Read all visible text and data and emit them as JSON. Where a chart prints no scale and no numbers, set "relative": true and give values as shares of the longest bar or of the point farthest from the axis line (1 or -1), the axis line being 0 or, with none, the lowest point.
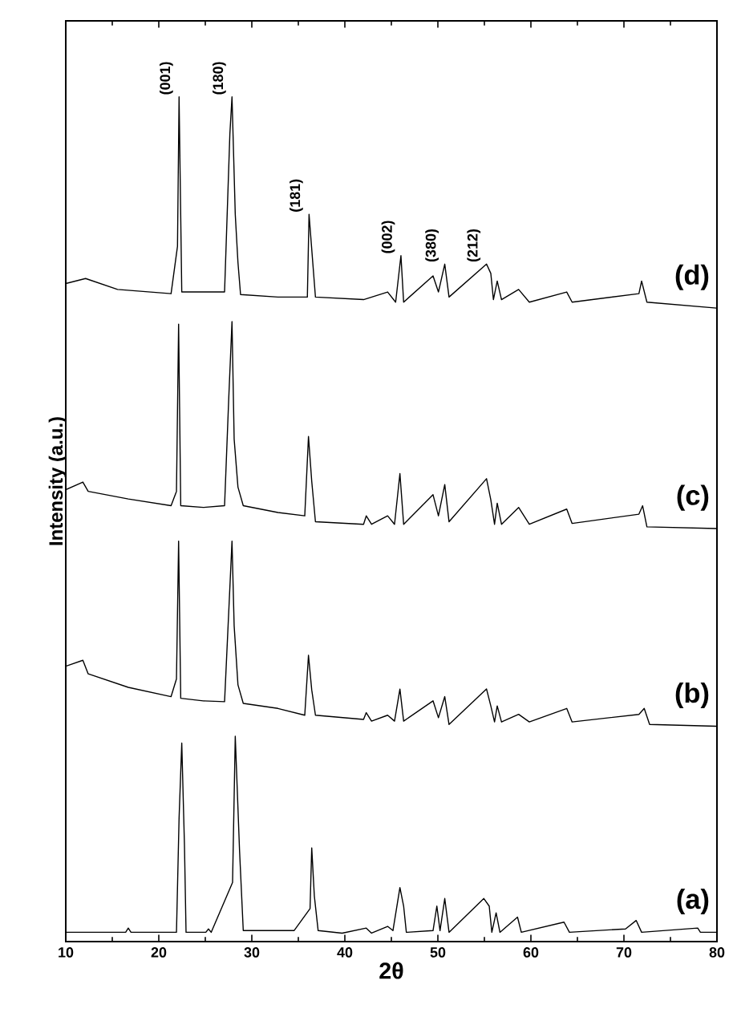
{
  "chart_data": {
    "type": "line",
    "relative": true,
    "xlabel": "2θ",
    "ylabel": "Intensity (a.u.)",
    "xlim": [
      10,
      80
    ],
    "xticks": [
      10,
      20,
      30,
      40,
      50,
      60,
      70,
      80
    ],
    "series": [
      {
        "name": "(a)",
        "color": "#000000",
        "x": [
          10,
          16.44,
          16.72,
          17.01,
          21.9,
          22.18,
          22.47,
          22.76,
          22.93,
          25.06,
          25.34,
          25.63,
          27.93,
          28.22,
          28.68,
          29.08,
          32.53,
          34.54,
          36.26,
          36.44,
          36.72,
          37.13,
          39.71,
          42.3,
          42.87,
          44.6,
          45.17,
          45.92,
          46.32,
          46.61,
          49.48,
          49.89,
          50.23,
          50.74,
          51.2,
          54.94,
          55.52,
          55.8,
          56.26,
          56.67,
          58.56,
          58.97,
          63.56,
          64.14,
          70.17,
          71.32,
          71.9,
          77.93,
          78.22,
          79.94
        ],
        "values": [
          0.011,
          0.011,
          0.016,
          0.011,
          0.011,
          0.146,
          0.235,
          0.114,
          0.011,
          0.011,
          0.015,
          0.011,
          0.07,
          0.243,
          0.108,
          0.013,
          0.013,
          0.013,
          0.039,
          0.111,
          0.054,
          0.013,
          0.01,
          0.016,
          0.01,
          0.018,
          0.013,
          0.064,
          0.042,
          0.011,
          0.013,
          0.042,
          0.013,
          0.051,
          0.011,
          0.051,
          0.042,
          0.011,
          0.034,
          0.011,
          0.029,
          0.011,
          0.023,
          0.011,
          0.015,
          0.025,
          0.011,
          0.016,
          0.011,
          0.011
        ]
      },
      {
        "name": "(b)",
        "color": "#000000",
        "x": [
          10,
          11.84,
          12.41,
          16.72,
          21.32,
          21.9,
          22.13,
          22.36,
          24.77,
          27.07,
          27.53,
          27.87,
          28.1,
          28.51,
          29.08,
          32.81,
          35.69,
          36.09,
          36.44,
          36.84,
          42.01,
          42.3,
          42.87,
          44.6,
          45.34,
          45.92,
          46.32,
          49.48,
          50.06,
          50.74,
          51.2,
          55.23,
          55.69,
          56.09,
          56.38,
          56.84,
          58.68,
          59.83,
          63.85,
          64.43,
          71.61,
          72.18,
          72.76,
          79.94
        ],
        "values": [
          0.326,
          0.333,
          0.317,
          0.301,
          0.29,
          0.311,
          0.474,
          0.288,
          0.285,
          0.284,
          0.393,
          0.474,
          0.374,
          0.304,
          0.282,
          0.276,
          0.268,
          0.339,
          0.298,
          0.268,
          0.263,
          0.271,
          0.261,
          0.268,
          0.261,
          0.299,
          0.261,
          0.285,
          0.265,
          0.29,
          0.257,
          0.299,
          0.279,
          0.26,
          0.279,
          0.26,
          0.269,
          0.26,
          0.276,
          0.26,
          0.269,
          0.276,
          0.257,
          0.255
        ]
      },
      {
        "name": "(c)",
        "color": "#000000",
        "x": [
          10,
          11.84,
          12.41,
          16.72,
          21.32,
          21.9,
          22.13,
          22.36,
          24.77,
          27.07,
          27.53,
          27.87,
          28.1,
          28.51,
          29.08,
          32.81,
          35.69,
          36.09,
          36.44,
          36.84,
          42.01,
          42.3,
          42.87,
          44.6,
          45.34,
          45.92,
          46.32,
          49.48,
          50.06,
          50.74,
          51.2,
          55.23,
          55.69,
          56.09,
          56.38,
          56.84,
          58.68,
          59.83,
          63.85,
          64.43,
          71.61,
          72.01,
          72.47,
          79.94
        ],
        "values": [
          0.535,
          0.544,
          0.533,
          0.524,
          0.516,
          0.533,
          0.731,
          0.516,
          0.514,
          0.516,
          0.646,
          0.734,
          0.595,
          0.538,
          0.516,
          0.508,
          0.504,
          0.598,
          0.545,
          0.497,
          0.494,
          0.504,
          0.494,
          0.504,
          0.494,
          0.554,
          0.494,
          0.529,
          0.504,
          0.541,
          0.497,
          0.548,
          0.523,
          0.494,
          0.519,
          0.494,
          0.514,
          0.494,
          0.512,
          0.495,
          0.506,
          0.516,
          0.491,
          0.489
        ]
      },
      {
        "name": "(d)",
        "color": "#000000",
        "x": [
          10,
          12.13,
          15.57,
          21.32,
          22.01,
          22.18,
          22.47,
          24.77,
          27.07,
          27.64,
          27.87,
          28.22,
          28.51,
          28.79,
          32.81,
          35.97,
          36.15,
          36.55,
          36.84,
          42.01,
          44.6,
          45.46,
          46.03,
          46.32,
          49.48,
          50.06,
          50.74,
          51.2,
          55.23,
          55.69,
          55.97,
          56.38,
          56.84,
          58.68,
          59.83,
          63.85,
          64.43,
          71.61,
          71.9,
          72.47,
          79.94
        ],
        "values": [
          0.779,
          0.785,
          0.772,
          0.767,
          0.823,
          1.0,
          0.769,
          0.769,
          0.769,
          0.956,
          1.0,
          0.861,
          0.804,
          0.766,
          0.763,
          0.763,
          0.861,
          0.804,
          0.763,
          0.76,
          0.769,
          0.757,
          0.812,
          0.757,
          0.788,
          0.769,
          0.802,
          0.763,
          0.802,
          0.791,
          0.76,
          0.782,
          0.76,
          0.772,
          0.757,
          0.769,
          0.757,
          0.767,
          0.782,
          0.757,
          0.75
        ]
      }
    ],
    "annotations": [
      {
        "text": "(001)",
        "x": 22.18,
        "y": 1.0
      },
      {
        "text": "(180)",
        "x": 27.87,
        "y": 1.0
      },
      {
        "text": "(181)",
        "x": 36.15,
        "y": 0.861
      },
      {
        "text": "(002)",
        "x": 46.03,
        "y": 0.812
      },
      {
        "text": "(380)",
        "x": 50.74,
        "y": 0.802
      },
      {
        "text": "(212)",
        "x": 55.23,
        "y": 0.802
      }
    ]
  }
}
